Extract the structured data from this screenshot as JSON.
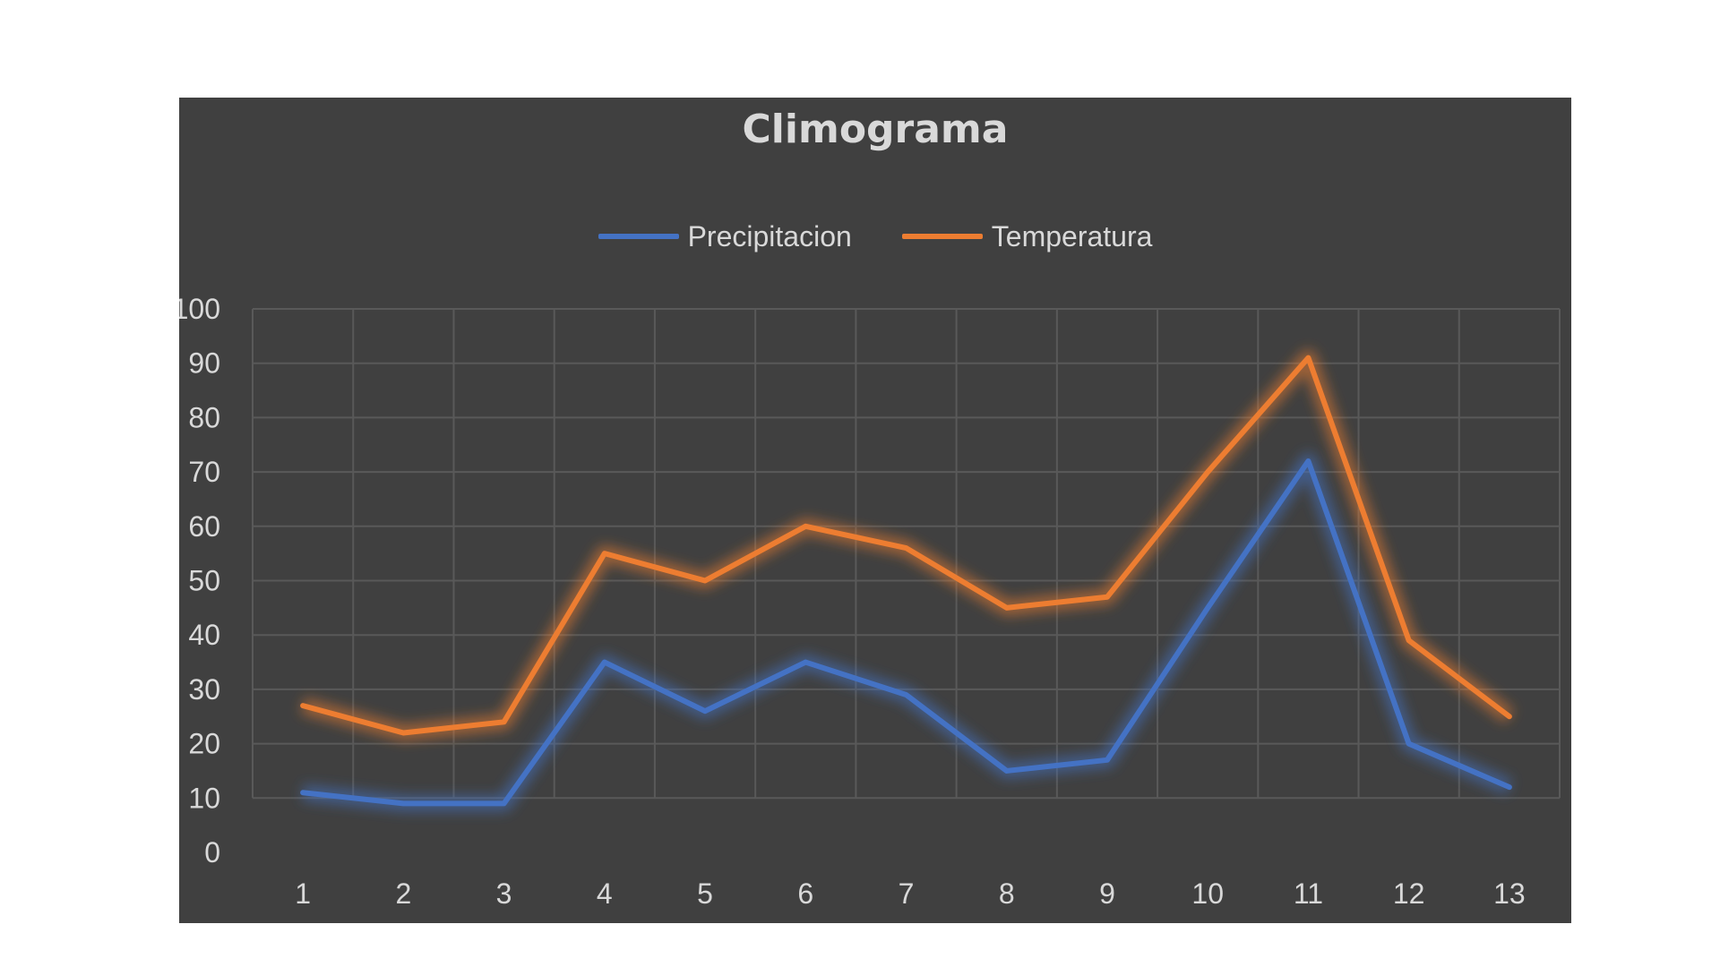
{
  "chart_data": {
    "type": "line",
    "title": "Climograma",
    "xlabel": "",
    "ylabel": "",
    "categories": [
      "1",
      "2",
      "3",
      "4",
      "5",
      "6",
      "7",
      "8",
      "9",
      "10",
      "11",
      "12",
      "13"
    ],
    "ylim": [
      0,
      100
    ],
    "yticks": [
      "0",
      "10",
      "20",
      "30",
      "40",
      "50",
      "60",
      "70",
      "80",
      "90",
      "100"
    ],
    "grid": true,
    "legend_position": "top",
    "series": [
      {
        "name": "Precipitacion",
        "color": "#4472c4",
        "values": [
          11,
          9,
          9,
          35,
          26,
          35,
          29,
          15,
          17,
          45,
          72,
          20,
          12
        ]
      },
      {
        "name": "Temperatura",
        "color": "#ed7d31",
        "values": [
          27,
          22,
          24,
          55,
          50,
          60,
          56,
          45,
          47,
          70,
          91,
          39,
          25
        ]
      }
    ]
  },
  "colors": {
    "background": "#404040",
    "gridline": "#595959",
    "text": "#d9d9d9"
  }
}
